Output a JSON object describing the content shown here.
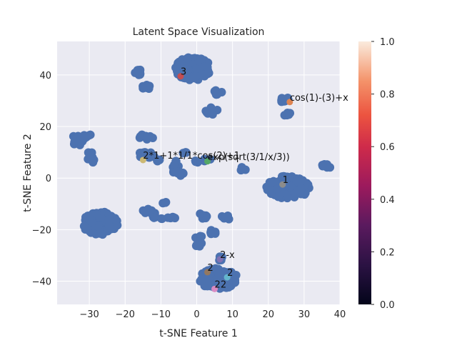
{
  "chart_data": {
    "type": "scatter",
    "title": "Latent Space Visualization",
    "xlabel": "t-SNE Feature 1",
    "ylabel": "t-SNE Feature 2",
    "xlim": [
      -39,
      40
    ],
    "ylim": [
      -49,
      53
    ],
    "xticks": [
      -30,
      -20,
      -10,
      0,
      10,
      20,
      30,
      40
    ],
    "yticks": [
      -40,
      -20,
      0,
      20,
      40
    ],
    "grid": true,
    "background": "#eaeaf2",
    "point_color": "#4c72b0",
    "clusters": [
      {
        "cx": -1,
        "cy": 42.5,
        "rx": 5,
        "ry": 4.5,
        "n": 120
      },
      {
        "cx": -16,
        "cy": 41,
        "rx": 1.3,
        "ry": 1,
        "n": 8
      },
      {
        "cx": -14,
        "cy": 35.5,
        "rx": 1.5,
        "ry": 1,
        "n": 8
      },
      {
        "cx": 4,
        "cy": 26,
        "rx": 1.8,
        "ry": 1.5,
        "n": 12
      },
      {
        "cx": 6,
        "cy": 33.5,
        "rx": 1.2,
        "ry": 1.3,
        "n": 6
      },
      {
        "cx": 24,
        "cy": 30.5,
        "rx": 1.8,
        "ry": 1,
        "n": 10
      },
      {
        "cx": 25,
        "cy": 25,
        "rx": 1.3,
        "ry": 1,
        "n": 6
      },
      {
        "cx": -33,
        "cy": 15,
        "rx": 1.8,
        "ry": 2.5,
        "n": 16
      },
      {
        "cx": -30.5,
        "cy": 16.5,
        "rx": 1,
        "ry": 1,
        "n": 4
      },
      {
        "cx": -29.5,
        "cy": 7,
        "rx": 1.5,
        "ry": 1.2,
        "n": 8
      },
      {
        "cx": -29.5,
        "cy": 10,
        "rx": 0.8,
        "ry": 0.8,
        "n": 3
      },
      {
        "cx": -14,
        "cy": 16,
        "rx": 2.2,
        "ry": 1,
        "n": 10
      },
      {
        "cx": -14,
        "cy": 9,
        "rx": 2.5,
        "ry": 1.5,
        "n": 12
      },
      {
        "cx": -11,
        "cy": 6.5,
        "rx": 1,
        "ry": 0.8,
        "n": 4
      },
      {
        "cx": -6,
        "cy": 5,
        "rx": 1.5,
        "ry": 2.5,
        "n": 12
      },
      {
        "cx": -5,
        "cy": 2,
        "rx": 1.8,
        "ry": 1.2,
        "n": 8
      },
      {
        "cx": -3,
        "cy": 10,
        "rx": 1,
        "ry": 0.8,
        "n": 4
      },
      {
        "cx": 0,
        "cy": 6,
        "rx": 0.8,
        "ry": 0.8,
        "n": 3
      },
      {
        "cx": 3,
        "cy": 7,
        "rx": 1,
        "ry": 0.8,
        "n": 4
      },
      {
        "cx": 13,
        "cy": 3.5,
        "rx": 1.3,
        "ry": 0.8,
        "n": 5
      },
      {
        "cx": 25.5,
        "cy": -3.5,
        "rx": 6,
        "ry": 4.5,
        "n": 150
      },
      {
        "cx": 36,
        "cy": 4.5,
        "rx": 1.5,
        "ry": 1,
        "n": 8
      },
      {
        "cx": -27,
        "cy": -17.5,
        "rx": 5,
        "ry": 4.5,
        "n": 120
      },
      {
        "cx": -13,
        "cy": -13,
        "rx": 2.5,
        "ry": 1.2,
        "n": 10
      },
      {
        "cx": -11,
        "cy": -15.5,
        "rx": 1.5,
        "ry": 1.2,
        "n": 6
      },
      {
        "cx": -9,
        "cy": -10,
        "rx": 0.8,
        "ry": 0.8,
        "n": 3
      },
      {
        "cx": -7,
        "cy": -15,
        "rx": 1.2,
        "ry": 1,
        "n": 5
      },
      {
        "cx": 1,
        "cy": -15,
        "rx": 2.5,
        "ry": 1.2,
        "n": 8
      },
      {
        "cx": 8,
        "cy": -15.5,
        "rx": 1.2,
        "ry": 1.5,
        "n": 6
      },
      {
        "cx": 4,
        "cy": -21,
        "rx": 1.5,
        "ry": 1.2,
        "n": 6
      },
      {
        "cx": 1,
        "cy": -26,
        "rx": 1.5,
        "ry": 1.5,
        "n": 6
      },
      {
        "cx": 0.5,
        "cy": -23,
        "rx": 1,
        "ry": 0.8,
        "n": 3
      },
      {
        "cx": 6,
        "cy": -39,
        "rx": 5.5,
        "ry": 4,
        "n": 120
      },
      {
        "cx": 6.5,
        "cy": -31,
        "rx": 1,
        "ry": 1,
        "n": 4
      }
    ],
    "highlighted": [
      {
        "label": "3",
        "x": -4.5,
        "y": 39.5,
        "color": "#c44e52"
      },
      {
        "label": "cos(1)-(3)+x",
        "x": 26,
        "y": 29.5,
        "color": "#dd8452"
      },
      {
        "label": "2*1+1*1/1*cos(2)+1",
        "x": -15,
        "y": 7,
        "color": "#ccb974"
      },
      {
        "label": "exp(sqrt(3/1/x/3))",
        "x": 3,
        "y": 6.5,
        "color": "#55a868"
      },
      {
        "label": "1",
        "x": 24,
        "y": -2.5,
        "color": "#8c8c8c"
      },
      {
        "label": "2-x",
        "x": 6.5,
        "y": -31.5,
        "color": "#8172b3"
      },
      {
        "label": "2",
        "x": 3,
        "y": -36.5,
        "color": "#937860"
      },
      {
        "label": "2",
        "x": 8.5,
        "y": -38.5,
        "color": "#64b5cd"
      },
      {
        "label": "22",
        "x": 5,
        "y": -43,
        "color": "#da8bc3"
      }
    ],
    "colorbar": {
      "vmin": 0.0,
      "vmax": 1.0,
      "ticks": [
        "0.0",
        "0.2",
        "0.4",
        "0.6",
        "0.8",
        "1.0"
      ]
    }
  }
}
